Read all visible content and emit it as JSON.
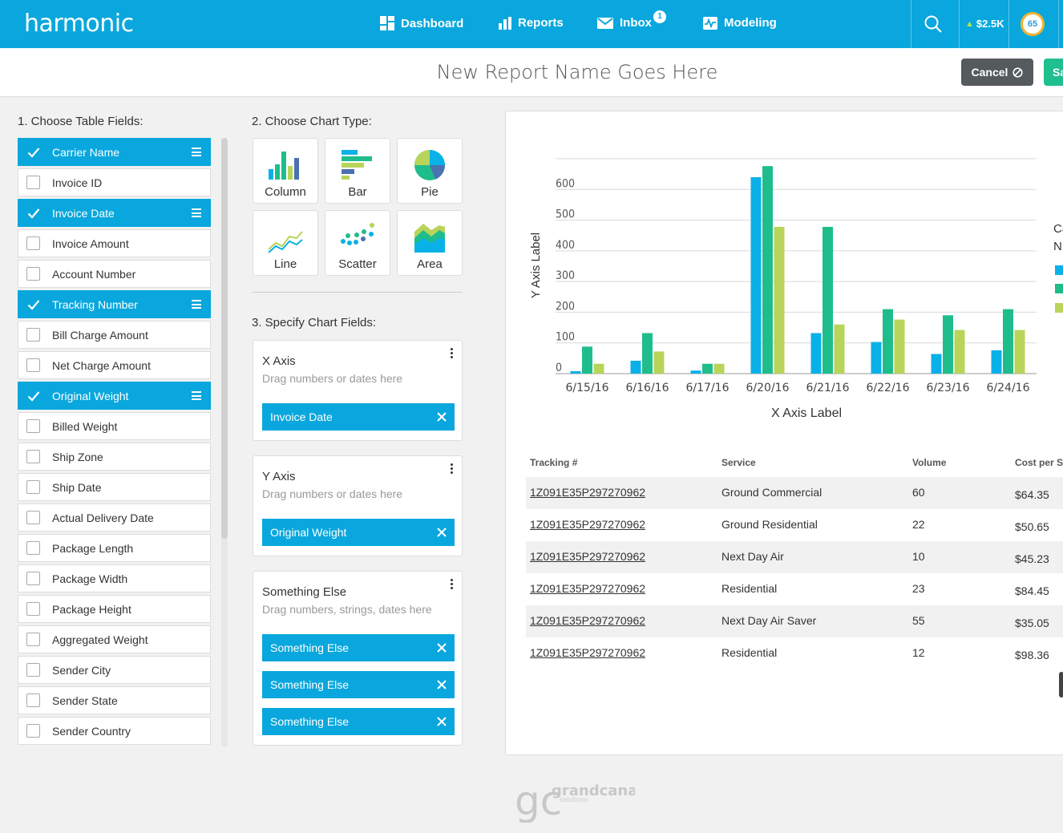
{
  "nav": {
    "logo": "harmonic",
    "items": [
      {
        "label": "Dashboard",
        "icon": "dashboard-icon"
      },
      {
        "label": "Reports",
        "icon": "reports-icon"
      },
      {
        "label": "Inbox",
        "icon": "inbox-icon"
      },
      {
        "label": "Modeling",
        "icon": "modeling-icon"
      }
    ],
    "inbox_badge": "1",
    "savings": "$2.5K",
    "score": "65"
  },
  "titlebar": {
    "title": "New Report Name Goes Here",
    "cancel_label": "Cancel",
    "save_label": "Sa"
  },
  "sections": {
    "table_fields": "1. Choose Table Fields:",
    "chart_type": "2. Choose Chart Type:",
    "chart_fields": "3. Specify Chart Fields:"
  },
  "fields": [
    {
      "label": "Carrier Name",
      "checked": true
    },
    {
      "label": "Invoice ID",
      "checked": false
    },
    {
      "label": "Invoice Date",
      "checked": true
    },
    {
      "label": "Invoice Amount",
      "checked": false
    },
    {
      "label": "Account Number",
      "checked": false
    },
    {
      "label": "Tracking Number",
      "checked": true
    },
    {
      "label": "Bill Charge Amount",
      "checked": false
    },
    {
      "label": "Net Charge Amount",
      "checked": false
    },
    {
      "label": "Original Weight",
      "checked": true
    },
    {
      "label": "Billed Weight",
      "checked": false
    },
    {
      "label": "Ship Zone",
      "checked": false
    },
    {
      "label": "Ship Date",
      "checked": false
    },
    {
      "label": "Actual Delivery Date",
      "checked": false
    },
    {
      "label": "Package Length",
      "checked": false
    },
    {
      "label": "Package Width",
      "checked": false
    },
    {
      "label": "Package Height",
      "checked": false
    },
    {
      "label": "Aggregated Weight",
      "checked": false
    },
    {
      "label": "Sender City",
      "checked": false
    },
    {
      "label": "Sender State",
      "checked": false
    },
    {
      "label": "Sender Country",
      "checked": false
    }
  ],
  "chart_types": [
    {
      "label": "Column",
      "icon": "column-chart-icon"
    },
    {
      "label": "Bar",
      "icon": "bar-chart-icon"
    },
    {
      "label": "Pie",
      "icon": "pie-chart-icon"
    },
    {
      "label": "Line",
      "icon": "line-chart-icon"
    },
    {
      "label": "Scatter",
      "icon": "scatter-chart-icon"
    },
    {
      "label": "Area",
      "icon": "area-chart-icon"
    }
  ],
  "chart_fields": {
    "x_axis": {
      "title": "X Axis",
      "hint": "Drag numbers or dates here",
      "pills": [
        "Invoice Date"
      ]
    },
    "y_axis": {
      "title": "Y Axis",
      "hint": "Drag numbers or dates here",
      "pills": [
        "Original Weight"
      ]
    },
    "other": {
      "title": "Something Else",
      "hint": "Drag numbers, strings, dates here",
      "pills": [
        "Something Else",
        "Something Else",
        "Something Else"
      ]
    }
  },
  "legend_fragment": [
    "Ca",
    "N"
  ],
  "chart_data": {
    "type": "bar",
    "categories": [
      "6/15/16",
      "6/16/16",
      "6/17/16",
      "6/20/16",
      "6/21/16",
      "6/22/16",
      "6/23/16",
      "6/24/16"
    ],
    "series": [
      {
        "values": [
          8,
          42,
          10,
          640,
          132,
          103,
          64,
          76
        ],
        "color": "#09b1e8"
      },
      {
        "values": [
          88,
          132,
          32,
          676,
          478,
          210,
          190,
          210
        ],
        "color": "#1fbd8c"
      },
      {
        "values": [
          32,
          72,
          32,
          478,
          160,
          176,
          142,
          142
        ],
        "color": "#b8d45a"
      }
    ],
    "xlabel": "X Axis Label",
    "ylabel": "Y Axis Label",
    "yticks": [
      0,
      100,
      200,
      300,
      400,
      500,
      600
    ],
    "ylim": [
      0,
      700
    ],
    "grid": true,
    "legend": "right"
  },
  "table": {
    "headers": [
      "Tracking #",
      "Service",
      "Volume",
      "Cost per S"
    ],
    "rows": [
      {
        "tracking": "1Z091E35P297270962",
        "service": "Ground Commercial",
        "volume": "60",
        "cost": "$64.35"
      },
      {
        "tracking": "1Z091E35P297270962",
        "service": "Ground Residential",
        "volume": "22",
        "cost": "$50.65"
      },
      {
        "tracking": "1Z091E35P297270962",
        "service": "Next Day Air",
        "volume": "10",
        "cost": "$45.23"
      },
      {
        "tracking": "1Z091E35P297270962",
        "service": "Residential",
        "volume": "23",
        "cost": "$84.45"
      },
      {
        "tracking": "1Z091E35P297270962",
        "service": "Next Day Air Saver",
        "volume": "55",
        "cost": "$35.05"
      },
      {
        "tracking": "1Z091E35P297270962",
        "service": "Residential",
        "volume": "12",
        "cost": "$98.36"
      }
    ]
  },
  "footer": {
    "brand": "grandcanal",
    "sub": "solutions",
    "mark": "gc"
  }
}
